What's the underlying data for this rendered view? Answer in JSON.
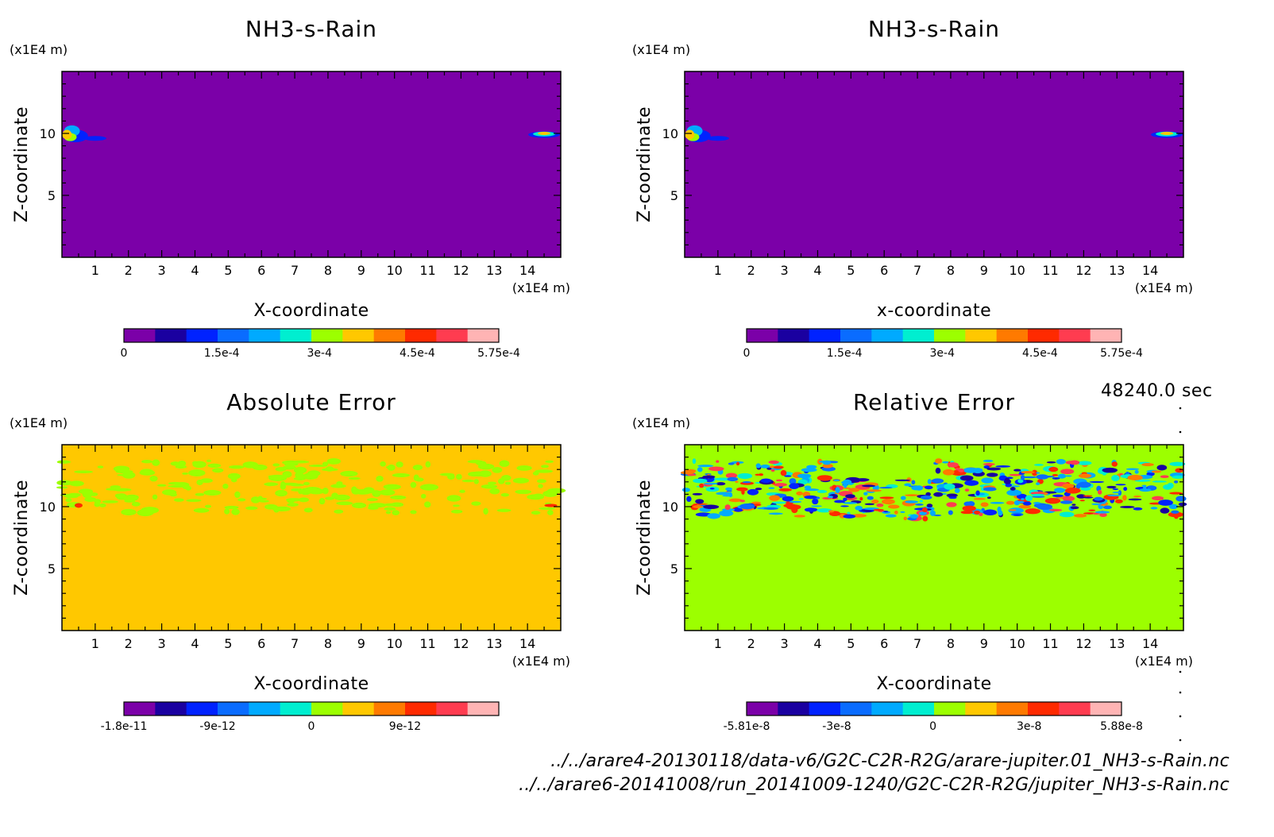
{
  "time_label": "48240.0 sec",
  "file_paths": [
    "../../arare4-20130118/data-v6/G2C-C2R-R2G/arare-jupiter.01_NH3-s-Rain.nc",
    "../../arare6-20141008/run_20141009-1240/G2C-C2R-R2G/jupiter_NH3-s-Rain.nc"
  ],
  "chart_data": [
    {
      "type": "heatmap",
      "title": "NH3-s-Rain",
      "xlabel": "X-coordinate",
      "ylabel": "Z-coordinate",
      "x_unit": "(x1E4 m)",
      "y_unit": "(x1E4 m)",
      "xlim": [
        0,
        15
      ],
      "ylim": [
        0,
        15
      ],
      "x_ticks": [
        1,
        2,
        3,
        4,
        5,
        6,
        7,
        8,
        9,
        10,
        11,
        12,
        13,
        14
      ],
      "y_ticks": [
        5,
        10
      ],
      "background_color": "#7b00a8",
      "colorbar": {
        "colors": [
          "#7b00a8",
          "#1a00a0",
          "#0022ff",
          "#0a6cff",
          "#00aaff",
          "#00eed0",
          "#9cff00",
          "#ffc800",
          "#ff7a00",
          "#ff2a00",
          "#ff3c50",
          "#ffb4b4"
        ],
        "tick_labels": [
          "0",
          "1.5e-4",
          "3e-4",
          "4.5e-4",
          "5.75e-4"
        ],
        "tick_values": [
          0,
          0.00015,
          0.0003,
          0.00045,
          0.000575
        ],
        "range": [
          0,
          0.000575
        ]
      }
    },
    {
      "type": "heatmap",
      "title": "NH3-s-Rain",
      "xlabel": "x-coordinate",
      "ylabel": "Z-coordinate",
      "x_unit": "(x1E4 m)",
      "y_unit": "(x1E4 m)",
      "xlim": [
        0,
        15
      ],
      "ylim": [
        0,
        15
      ],
      "x_ticks": [
        1,
        2,
        3,
        4,
        5,
        6,
        7,
        8,
        9,
        10,
        11,
        12,
        13,
        14
      ],
      "y_ticks": [
        5,
        10
      ],
      "background_color": "#7b00a8",
      "colorbar": {
        "colors": [
          "#7b00a8",
          "#1a00a0",
          "#0022ff",
          "#0a6cff",
          "#00aaff",
          "#00eed0",
          "#9cff00",
          "#ffc800",
          "#ff7a00",
          "#ff2a00",
          "#ff3c50",
          "#ffb4b4"
        ],
        "tick_labels": [
          "0",
          "1.5e-4",
          "3e-4",
          "4.5e-4",
          "5.75e-4"
        ],
        "tick_values": [
          0,
          0.00015,
          0.0003,
          0.00045,
          0.000575
        ],
        "range": [
          0,
          0.000575
        ]
      }
    },
    {
      "type": "heatmap",
      "title": "Absolute Error",
      "xlabel": "X-coordinate",
      "ylabel": "Z-coordinate",
      "x_unit": "(x1E4 m)",
      "y_unit": "(x1E4 m)",
      "xlim": [
        0,
        15
      ],
      "ylim": [
        0,
        15
      ],
      "x_ticks": [
        1,
        2,
        3,
        4,
        5,
        6,
        7,
        8,
        9,
        10,
        11,
        12,
        13,
        14
      ],
      "y_ticks": [
        5,
        10
      ],
      "background_color": "#ffc800",
      "colorbar": {
        "colors": [
          "#7b00a8",
          "#1a00a0",
          "#0022ff",
          "#0a6cff",
          "#00aaff",
          "#00eed0",
          "#9cff00",
          "#ffc800",
          "#ff7a00",
          "#ff2a00",
          "#ff3c50",
          "#ffb4b4"
        ],
        "tick_labels": [
          "-1.8e-11",
          "-9e-12",
          "0",
          "9e-12"
        ],
        "tick_values": [
          -1.8e-11,
          -9e-12,
          0,
          9e-12
        ],
        "range": [
          -1.8e-11,
          1.8e-11
        ]
      }
    },
    {
      "type": "heatmap",
      "title": "Relative Error",
      "xlabel": "X-coordinate",
      "ylabel": "Z-coordinate",
      "x_unit": "(x1E4 m)",
      "y_unit": "(x1E4 m)",
      "xlim": [
        0,
        15
      ],
      "ylim": [
        0,
        15
      ],
      "x_ticks": [
        1,
        2,
        3,
        4,
        5,
        6,
        7,
        8,
        9,
        10,
        11,
        12,
        13,
        14
      ],
      "y_ticks": [
        5,
        10
      ],
      "background_color": "#9cff00",
      "colorbar": {
        "colors": [
          "#7b00a8",
          "#1a00a0",
          "#0022ff",
          "#0a6cff",
          "#00aaff",
          "#00eed0",
          "#9cff00",
          "#ffc800",
          "#ff7a00",
          "#ff2a00",
          "#ff3c50",
          "#ffb4b4"
        ],
        "tick_labels": [
          "-5.81e-8",
          "-3e-8",
          "0",
          "3e-8",
          "5.88e-8"
        ],
        "tick_values": [
          -5.81e-08,
          -3e-08,
          0,
          3e-08,
          5.88e-08
        ],
        "range": [
          -5.81e-08,
          5.88e-08
        ]
      }
    }
  ]
}
